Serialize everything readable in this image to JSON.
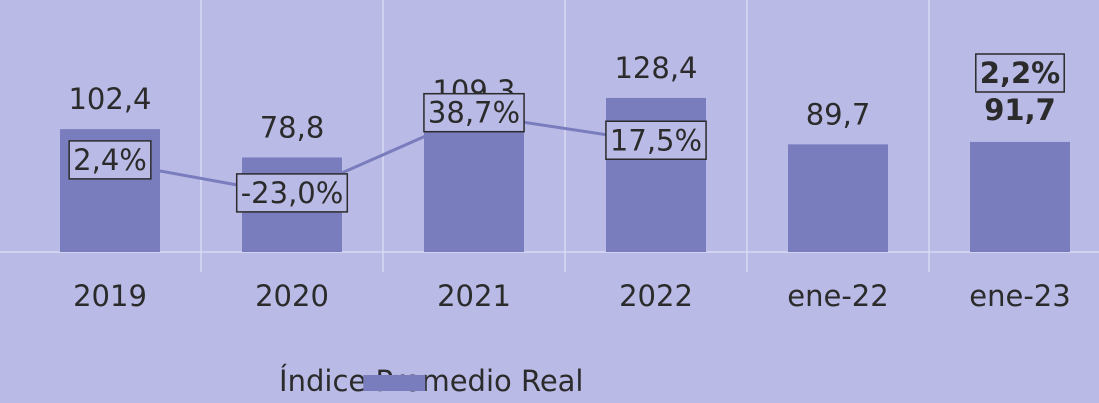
{
  "chart_data": {
    "type": "bar",
    "categories": [
      "2019",
      "2020",
      "2021",
      "2022",
      "ene-22",
      "ene-23"
    ],
    "series": [
      {
        "name": "Índice Promedio Real",
        "color": "#7a7dbd",
        "values": [
          102.4,
          78.8,
          109.3,
          128.4,
          89.7,
          91.7
        ],
        "value_labels": [
          "102,4",
          "78,8",
          "109,3",
          "128,4",
          "89,7",
          "91,7"
        ]
      },
      {
        "type": "line",
        "axis": "y2",
        "color": "#7a7dbd",
        "values": [
          2.4,
          -23.0,
          38.7,
          17.5,
          null,
          2.2
        ],
        "value_labels": [
          "2,4%",
          "-23,0%",
          "38,7%",
          "17,5%",
          null,
          "2,2%"
        ]
      }
    ],
    "legend": "bottom"
  }
}
